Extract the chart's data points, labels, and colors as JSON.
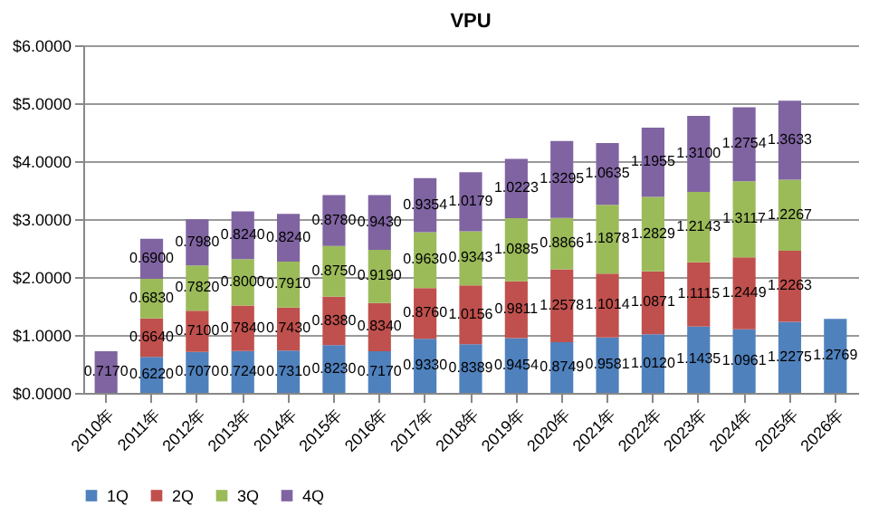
{
  "chart_data": {
    "type": "bar",
    "title": "VPU",
    "stacked": true,
    "categories": [
      "2010年",
      "2011年",
      "2012年",
      "2013年",
      "2014年",
      "2015年",
      "2016年",
      "2017年",
      "2018年",
      "2019年",
      "2020年",
      "2021年",
      "2022年",
      "2023年",
      "2024年",
      "2025年",
      "2026年"
    ],
    "series": [
      {
        "name": "1Q",
        "color": "#4f81bd",
        "values": [
          null,
          0.622,
          0.707,
          0.724,
          0.731,
          0.823,
          0.717,
          0.933,
          0.8389,
          0.9454,
          0.8749,
          0.9581,
          1.012,
          1.1435,
          1.0961,
          1.2275,
          1.2769
        ],
        "value_labels": [
          null,
          "0.6220",
          "0.7070",
          "0.7240",
          "0.7310",
          "0.8230",
          "0.7170",
          "0.9330",
          "0.8389",
          "0.9454",
          "0.8749",
          "0.9581",
          "1.0120",
          "1.1435",
          "1.0961",
          "1.2275",
          "1.2769"
        ]
      },
      {
        "name": "2Q",
        "color": "#c0504d",
        "values": [
          null,
          0.664,
          0.71,
          0.784,
          0.743,
          0.838,
          0.834,
          0.876,
          1.0156,
          0.9811,
          1.2578,
          1.1014,
          1.0871,
          1.1115,
          1.2449,
          1.2263,
          null
        ],
        "value_labels": [
          null,
          "0.6640",
          "0.7100",
          "0.7840",
          "0.7430",
          "0.8380",
          "0.8340",
          "0.8760",
          "1.0156",
          "0.9811",
          "1.2578",
          "1.1014",
          "1.0871",
          "1.1115",
          "1.2449",
          "1.2263",
          null
        ]
      },
      {
        "name": "3Q",
        "color": "#9bbb59",
        "values": [
          null,
          0.683,
          0.782,
          0.8,
          0.791,
          0.875,
          0.919,
          0.963,
          0.9343,
          1.0885,
          0.8866,
          1.1878,
          1.2829,
          1.2143,
          1.3117,
          1.2267,
          null
        ],
        "value_labels": [
          null,
          "0.6830",
          "0.7820",
          "0.8000",
          "0.7910",
          "0.8750",
          "0.9190",
          "0.9630",
          "0.9343",
          "1.0885",
          "0.8866",
          "1.1878",
          "1.2829",
          "1.2143",
          "1.3117",
          "1.2267",
          null
        ]
      },
      {
        "name": "4Q",
        "color": "#8064a2",
        "values": [
          0.717,
          0.69,
          0.798,
          0.824,
          0.824,
          0.878,
          0.943,
          0.9354,
          1.0179,
          1.0223,
          1.3295,
          1.0635,
          1.1955,
          1.31,
          1.2754,
          1.3633,
          null
        ],
        "value_labels": [
          "0.7170",
          "0.6900",
          "0.7980",
          "0.8240",
          "0.8240",
          "0.8780",
          "0.9430",
          "0.9354",
          "1.0179",
          "1.0223",
          "1.3295",
          "1.0635",
          "1.1955",
          "1.3100",
          "1.2754",
          "1.3633",
          null
        ]
      }
    ],
    "ylim": [
      0,
      6
    ],
    "yticks": [
      {
        "value": 0,
        "label": "$0.0000"
      },
      {
        "value": 1,
        "label": "$1.0000"
      },
      {
        "value": 2,
        "label": "$2.0000"
      },
      {
        "value": 3,
        "label": "$3.0000"
      },
      {
        "value": 4,
        "label": "$4.0000"
      },
      {
        "value": 5,
        "label": "$5.0000"
      },
      {
        "value": 6,
        "label": "$6.0000"
      }
    ],
    "grid": "y",
    "legend": "bottom"
  }
}
